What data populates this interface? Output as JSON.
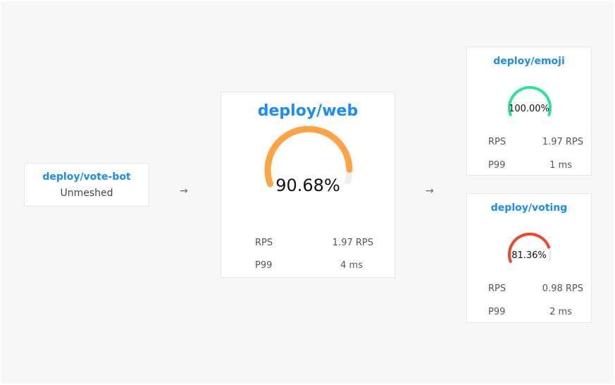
{
  "source": {
    "name": "deploy/vote-bot",
    "status": "Unmeshed"
  },
  "main": {
    "name": "deploy/web",
    "success": "90.68%",
    "success_value": 90.68,
    "color": "#ffa343",
    "rps_label": "RPS",
    "rps": "1.97 RPS",
    "p99_label": "P99",
    "p99": "4 ms"
  },
  "targets": [
    {
      "name": "deploy/emoji",
      "success": "100.00%",
      "success_value": 100,
      "color": "#2de39b",
      "rps_label": "RPS",
      "rps": "1.97 RPS",
      "p99_label": "P99",
      "p99": "1 ms"
    },
    {
      "name": "deploy/voting",
      "success": "81.36%",
      "success_value": 81.36,
      "color": "#f2452b",
      "rps_label": "RPS",
      "rps": "0.98 RPS",
      "p99_label": "P99",
      "p99": "2 ms"
    }
  ],
  "arrows": {
    "glyph": "→"
  },
  "colors": {
    "title": "#1a8cff",
    "track": "#eeeeee",
    "background": "#f7f7f7"
  }
}
